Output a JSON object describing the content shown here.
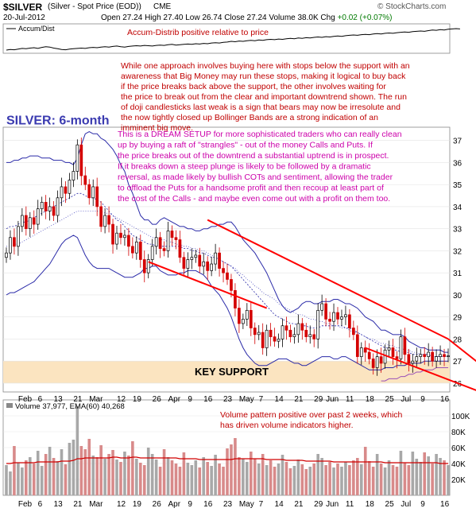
{
  "header": {
    "symbol": "$SILVER",
    "description": "(Silver - Spot Price (EOD))",
    "exchange": "CME",
    "date": "20-Jul-2012",
    "open_label": "Open",
    "open": "27.24",
    "high_label": "High",
    "high": "27.40",
    "low_label": "Low",
    "low": "26.74",
    "close_label": "Close",
    "close": "27.24",
    "volume_label": "Volume",
    "volume": "38.0K",
    "chg_label": "Chg",
    "chg": "+0.02 (+0.07%)",
    "watermark": "© StockCharts.com"
  },
  "chart_data": [
    {
      "type": "line",
      "panel": "accum-dist",
      "legend": "Accum/Dist",
      "annotation": "Accum-Distrib positive relative to price",
      "values": [
        12,
        14,
        13,
        15,
        17,
        16,
        18,
        19,
        17,
        20,
        22,
        21,
        18,
        16,
        14,
        13,
        15,
        16,
        17,
        18,
        17,
        19,
        20,
        19,
        21,
        22,
        21,
        23,
        24,
        22,
        21,
        23,
        24,
        25,
        24,
        26,
        25,
        24,
        26,
        27,
        26,
        28,
        29,
        27,
        28,
        29,
        30,
        29,
        31,
        30,
        32,
        31,
        33,
        34,
        33,
        35,
        36,
        38,
        37,
        39,
        38,
        40,
        41,
        40,
        42,
        41,
        43,
        44,
        43,
        45,
        44,
        46,
        47,
        46,
        48,
        47,
        49,
        48,
        50,
        51,
        50,
        52,
        51,
        53,
        54,
        53,
        55,
        56,
        57,
        56,
        58,
        59,
        58,
        60,
        61,
        60,
        62,
        63,
        62,
        64,
        65,
        66,
        65,
        67,
        68,
        69,
        68,
        70,
        72,
        71,
        73,
        72,
        74,
        75,
        76,
        75
      ]
    },
    {
      "type": "candlestick",
      "panel": "price",
      "title": "SILVER: 6-month",
      "ylim": [
        25.6,
        37.6
      ],
      "yticks": [
        26,
        27,
        28,
        29,
        30,
        31,
        32,
        33,
        34,
        35,
        36,
        37
      ],
      "x_tick_labels": [
        "Feb",
        "6",
        "13",
        "21",
        "Mar",
        "12",
        "19",
        "26",
        "Apr",
        "9",
        "16",
        "23",
        "May",
        "7",
        "14",
        "21",
        "29",
        "Jun",
        "11",
        "18",
        "25",
        "Jul",
        "9",
        "16"
      ],
      "close": [
        31.9,
        32.6,
        32.2,
        33.1,
        33.6,
        33.0,
        33.5,
        33.2,
        33.9,
        34.2,
        33.8,
        34.0,
        33.6,
        34.4,
        34.9,
        34.6,
        35.2,
        35.6,
        36.8,
        35.4,
        35.0,
        34.4,
        34.9,
        34.0,
        33.1,
        33.6,
        33.2,
        32.3,
        32.8,
        32.6,
        32.7,
        32.2,
        31.9,
        32.4,
        31.6,
        31.0,
        31.6,
        32.2,
        32.6,
        32.1,
        32.0,
        32.9,
        32.6,
        32.5,
        31.7,
        31.2,
        31.6,
        31.7,
        31.8,
        31.3,
        31.5,
        31.1,
        31.4,
        31.9,
        31.2,
        31.0,
        30.7,
        30.2,
        29.4,
        28.7,
        28.9,
        29.3,
        28.5,
        28.2,
        28.3,
        27.6,
        28.4,
        28.1,
        27.9,
        28.0,
        28.6,
        28.4,
        28.1,
        28.2,
        28.7,
        28.4,
        28.1,
        28.2,
        28.0,
        29.3,
        29.6,
        28.9,
        28.8,
        29.2,
        28.9,
        29.0,
        29.1,
        28.5,
        28.2,
        27.2,
        27.6,
        27.4,
        27.1,
        26.7,
        27.2,
        26.9,
        27.5,
        27.6,
        27.2,
        27.1,
        28.1,
        27.3,
        26.9,
        27.0,
        27.2,
        27.3,
        27.2,
        27.4,
        27.0,
        27.2,
        27.3,
        27.2,
        27.24
      ],
      "bollinger_upper": [
        36.0,
        36.0,
        36.1,
        36.1,
        36.2,
        36.2,
        36.3,
        36.3,
        36.3,
        36.2,
        36.2,
        36.2,
        36.1,
        36.1,
        36.1,
        36.0,
        36.0,
        35.9,
        36.2,
        36.8,
        37.3,
        37.4,
        37.3,
        37.3,
        37.1,
        37.0,
        36.8,
        36.6,
        36.3,
        35.9,
        35.6,
        35.0,
        34.6,
        34.1,
        33.6,
        33.4,
        33.4,
        33.2,
        33.2,
        33.4,
        33.5,
        33.4,
        33.3,
        33.2,
        33.1,
        33.1,
        33.0,
        33.0,
        32.9,
        32.9,
        33.0,
        33.0,
        33.1,
        33.1,
        33.2,
        33.2,
        33.3,
        33.3,
        33.1,
        32.8,
        32.5,
        32.3,
        32.1,
        31.9,
        31.6,
        31.3,
        31.0,
        30.6,
        30.2,
        29.8,
        29.5,
        29.3,
        29.2,
        29.3,
        29.4,
        29.6,
        29.7,
        29.7,
        29.6,
        29.6,
        29.7,
        29.7,
        29.7,
        29.8,
        29.8,
        29.7,
        29.6,
        29.6,
        29.5,
        29.4,
        29.2,
        29.0,
        28.9,
        28.8,
        28.6,
        28.4,
        28.4,
        28.3,
        28.2,
        28.2,
        28.2,
        28.1,
        27.9,
        27.8,
        27.7,
        27.6,
        27.6,
        27.5,
        27.5,
        27.5,
        27.5,
        27.4,
        27.4
      ],
      "bollinger_middle": [
        33.0,
        33.1,
        33.1,
        33.2,
        33.3,
        33.3,
        33.4,
        33.5,
        33.6,
        33.7,
        33.8,
        33.9,
        34.0,
        34.1,
        34.2,
        34.3,
        34.4,
        34.5,
        34.6,
        34.6,
        34.5,
        34.4,
        34.4,
        34.3,
        34.2,
        34.0,
        33.8,
        33.6,
        33.4,
        33.3,
        33.1,
        32.9,
        32.7,
        32.6,
        32.5,
        32.4,
        32.3,
        32.3,
        32.2,
        32.2,
        32.2,
        32.2,
        32.2,
        32.2,
        32.2,
        32.1,
        32.1,
        32.0,
        32.0,
        31.9,
        31.9,
        31.8,
        31.7,
        31.7,
        31.6,
        31.5,
        31.4,
        31.3,
        31.1,
        30.9,
        30.7,
        30.5,
        30.3,
        30.1,
        29.9,
        29.7,
        29.5,
        29.3,
        29.1,
        29.0,
        28.9,
        28.8,
        28.7,
        28.7,
        28.6,
        28.6,
        28.6,
        28.5,
        28.5,
        28.5,
        28.6,
        28.6,
        28.6,
        28.6,
        28.6,
        28.6,
        28.5,
        28.5,
        28.4,
        28.3,
        28.2,
        28.1,
        28.0,
        27.9,
        27.8,
        27.7,
        27.6,
        27.6,
        27.5,
        27.5,
        27.4,
        27.4,
        27.4,
        27.3,
        27.3,
        27.3,
        27.3,
        27.3,
        27.2,
        27.2,
        27.2,
        27.2,
        27.2
      ],
      "bollinger_lower": [
        30.0,
        30.1,
        30.1,
        30.2,
        30.3,
        30.4,
        30.5,
        30.6,
        30.8,
        31.0,
        31.2,
        31.4,
        31.7,
        32.0,
        32.3,
        32.5,
        32.6,
        32.7,
        32.6,
        32.2,
        31.8,
        31.5,
        31.3,
        31.2,
        31.2,
        31.2,
        31.2,
        31.1,
        31.0,
        30.9,
        30.8,
        30.8,
        30.8,
        30.9,
        31.0,
        31.2,
        31.2,
        31.3,
        31.3,
        31.1,
        31.0,
        30.9,
        30.9,
        30.9,
        31.0,
        31.0,
        31.1,
        31.1,
        31.1,
        31.0,
        30.9,
        30.7,
        30.4,
        30.2,
        30.0,
        29.7,
        29.4,
        29.0,
        28.5,
        28.0,
        27.6,
        27.3,
        27.1,
        26.9,
        26.8,
        26.8,
        26.8,
        26.9,
        27.0,
        27.1,
        27.1,
        27.1,
        27.0,
        26.9,
        26.9,
        26.8,
        26.8,
        26.9,
        27.0,
        27.1,
        27.2,
        27.2,
        27.2,
        27.1,
        27.1,
        27.2,
        27.2,
        27.1,
        27.0,
        26.9,
        26.8,
        26.7,
        26.6,
        26.6,
        26.6,
        26.6,
        26.7,
        26.7,
        26.7,
        26.8,
        26.8,
        26.8,
        26.9,
        26.9,
        26.9,
        26.9,
        27.0,
        27.0,
        27.0,
        27.0,
        27.0,
        27.0,
        27.0
      ],
      "moving_average_dotted": [
        32.2,
        32.2,
        32.3,
        32.3,
        32.4,
        32.5,
        32.6,
        32.7,
        32.8,
        32.9,
        33.0,
        33.1,
        33.2,
        33.3,
        33.4,
        33.5,
        33.6,
        33.7,
        33.8,
        33.8,
        33.8,
        33.8,
        33.8,
        33.8,
        33.8,
        33.7,
        33.7,
        33.6,
        33.5,
        33.4,
        33.3,
        33.2,
        33.1,
        33.0,
        32.9,
        32.8,
        32.7,
        32.6,
        32.6,
        32.5,
        32.5,
        32.4,
        32.4,
        32.3,
        32.3,
        32.2,
        32.2,
        32.1,
        32.1,
        32.0,
        32.0,
        31.9,
        31.8,
        31.7,
        31.6,
        31.5,
        31.4,
        31.3,
        31.2,
        31.0,
        30.9,
        30.7,
        30.6,
        30.4,
        30.3,
        30.1,
        30.0,
        29.9,
        29.8,
        29.6,
        29.5,
        29.4,
        29.3,
        29.2,
        29.1,
        29.1,
        29.0,
        28.9,
        28.9,
        28.8,
        28.8,
        28.7,
        28.7,
        28.6,
        28.6,
        28.5,
        28.5,
        28.4,
        28.3,
        28.3,
        28.2,
        28.1,
        28.0,
        28.0,
        27.9,
        27.8,
        27.8,
        27.7,
        27.7,
        27.6,
        27.6,
        27.5,
        27.5,
        27.4,
        27.4,
        27.3,
        27.3,
        27.3,
        27.2,
        27.2,
        27.2,
        27.2,
        27.2
      ],
      "lower_overlay_line": [
        null,
        null,
        null,
        null,
        null,
        null,
        null,
        null,
        null,
        null,
        null,
        null,
        null,
        null,
        null,
        null,
        null,
        null,
        null,
        null,
        null,
        null,
        null,
        null,
        null,
        null,
        null,
        null,
        null,
        null,
        null,
        null,
        null,
        null,
        null,
        null,
        null,
        null,
        null,
        null,
        null,
        null,
        null,
        null,
        null,
        null,
        null,
        null,
        null,
        null,
        null,
        null,
        null,
        null,
        null,
        null,
        null,
        null,
        null,
        null,
        null,
        null,
        null,
        null,
        null,
        null,
        null,
        null,
        null,
        null,
        null,
        null,
        null,
        null,
        null,
        null,
        null,
        null,
        null,
        null,
        null,
        null,
        null,
        null,
        null,
        null,
        null,
        null,
        null,
        null,
        null,
        null,
        null,
        null,
        null,
        26.1,
        26.1,
        26.2,
        26.2,
        26.2,
        26.3,
        26.3,
        26.4,
        26.4,
        26.5,
        26.5,
        26.6,
        26.6,
        26.6,
        26.7,
        26.7,
        26.7,
        26.7
      ],
      "support_band": [
        26.0,
        27.0
      ],
      "support_label": "KEY SUPPORT",
      "channel_upper_line": [
        [
          33.4,
          28.0
        ],
        [
          25.2,
          25.6
        ]
      ],
      "channel_lower_line": [
        [
          31.5,
          29.4
        ],
        [
          27.6,
          25.0
        ]
      ],
      "annotation_1": "While one approach involves buying here with stops below the support with an awareness that Big Money may run these stops, making it logical to buy back if the price breaks back above the support, the other involves waiting for the price to break out from the clear and important downtrend shown. The run of doji candlesticks last weak is a sign that bears may now be irresolute and the now tightly closed up Bollinger Bands are a strong indication of an imminent big move.",
      "annotation_2": "This is a DREAM SETUP for more sophisticated traders who can really clean up by buying a raft of \"strangles\" - out of the money Calls and Puts. If the price breaks out of the downtrend a substantial uptrend is in prospect. If it breaks down a steep plunge is likely to be followed by a dramatic reversal, as made likely by bullish COTs and sentiment, allowing the trader to offload the Puts for a handsome profit and then recoup at least part of the cost of the Calls - and maybe even come out with a profit on them too."
    },
    {
      "type": "bar",
      "panel": "volume",
      "legend": "Volume 37,977, EMA(60) 40,268",
      "ylim": [
        0,
        120000
      ],
      "yticks": [
        20000,
        40000,
        60000,
        80000,
        100000
      ],
      "ytick_labels": [
        "20K",
        "40K",
        "60K",
        "80K",
        "100K"
      ],
      "annotation": "Volume pattern positive over past 2 weeks, which has driven volume indicators higher.",
      "values": [
        38,
        30,
        62,
        41,
        35,
        44,
        48,
        40,
        56,
        37,
        52,
        61,
        47,
        43,
        58,
        39,
        66,
        70,
        112,
        62,
        58,
        71,
        50,
        48,
        63,
        46,
        52,
        57,
        45,
        42,
        55,
        50,
        68,
        46,
        41,
        38,
        60,
        52,
        45,
        36,
        58,
        48,
        44,
        40,
        36,
        54,
        41,
        38,
        44,
        35,
        48,
        42,
        37,
        51,
        40,
        36,
        59,
        64,
        72,
        48,
        46,
        42,
        55,
        46,
        40,
        52,
        38,
        44,
        36,
        40,
        51,
        42,
        34,
        37,
        45,
        39,
        33,
        36,
        40,
        52,
        47,
        38,
        42,
        35,
        40,
        36,
        42,
        38,
        44,
        47,
        39,
        61,
        43,
        36,
        52,
        40,
        35,
        44,
        38,
        36,
        56,
        41,
        38,
        55,
        46,
        42,
        54,
        49,
        40,
        52,
        47,
        44,
        38
      ],
      "up_flags": [
        1,
        1,
        0,
        1,
        1,
        0,
        1,
        0,
        1,
        1,
        0,
        1,
        0,
        1,
        1,
        0,
        1,
        1,
        1,
        0,
        0,
        0,
        1,
        0,
        0,
        1,
        0,
        0,
        1,
        0,
        1,
        0,
        0,
        1,
        0,
        0,
        1,
        1,
        1,
        0,
        0,
        1,
        0,
        0,
        0,
        0,
        1,
        1,
        1,
        0,
        1,
        0,
        1,
        1,
        0,
        0,
        0,
        0,
        0,
        0,
        1,
        1,
        0,
        0,
        1,
        0,
        1,
        0,
        0,
        1,
        1,
        0,
        0,
        1,
        1,
        0,
        0,
        1,
        0,
        1,
        1,
        0,
        0,
        1,
        0,
        1,
        1,
        0,
        0,
        0,
        1,
        0,
        0,
        0,
        1,
        0,
        1,
        1,
        0,
        0,
        1,
        0,
        0,
        1,
        1,
        1,
        0,
        1,
        0,
        1,
        1,
        0,
        1
      ],
      "ema": [
        40,
        40,
        41,
        41,
        41,
        41,
        41,
        41,
        42,
        42,
        42,
        42,
        42,
        42,
        43,
        43,
        43,
        44,
        46,
        46,
        47,
        47,
        47,
        47,
        47,
        47,
        47,
        48,
        48,
        47,
        47,
        47,
        48,
        48,
        47,
        47,
        47,
        47,
        47,
        47,
        47,
        47,
        47,
        47,
        46,
        46,
        46,
        46,
        46,
        45,
        45,
        45,
        45,
        45,
        45,
        45,
        45,
        45,
        46,
        46,
        46,
        46,
        46,
        46,
        46,
        46,
        45,
        45,
        45,
        45,
        45,
        44,
        44,
        44,
        44,
        44,
        43,
        43,
        43,
        43,
        43,
        43,
        43,
        42,
        42,
        42,
        42,
        42,
        42,
        42,
        42,
        42,
        42,
        42,
        42,
        42,
        41,
        41,
        41,
        41,
        41,
        41,
        41,
        41,
        41,
        41,
        41,
        41,
        41,
        41,
        40,
        40,
        40
      ]
    }
  ],
  "colors": {
    "annotation": "#c00000",
    "title": "#3a3ab0",
    "pink_note": "#cc00aa",
    "candle_up": "#000000",
    "candle_down": "#d40000",
    "bollinger": "#2a2aa8",
    "channel": "#ff0000",
    "support_band": "#fbe4c0",
    "volume_up": "#a8a8a8",
    "volume_down": "#d88a8a",
    "ema": "#d00000"
  }
}
